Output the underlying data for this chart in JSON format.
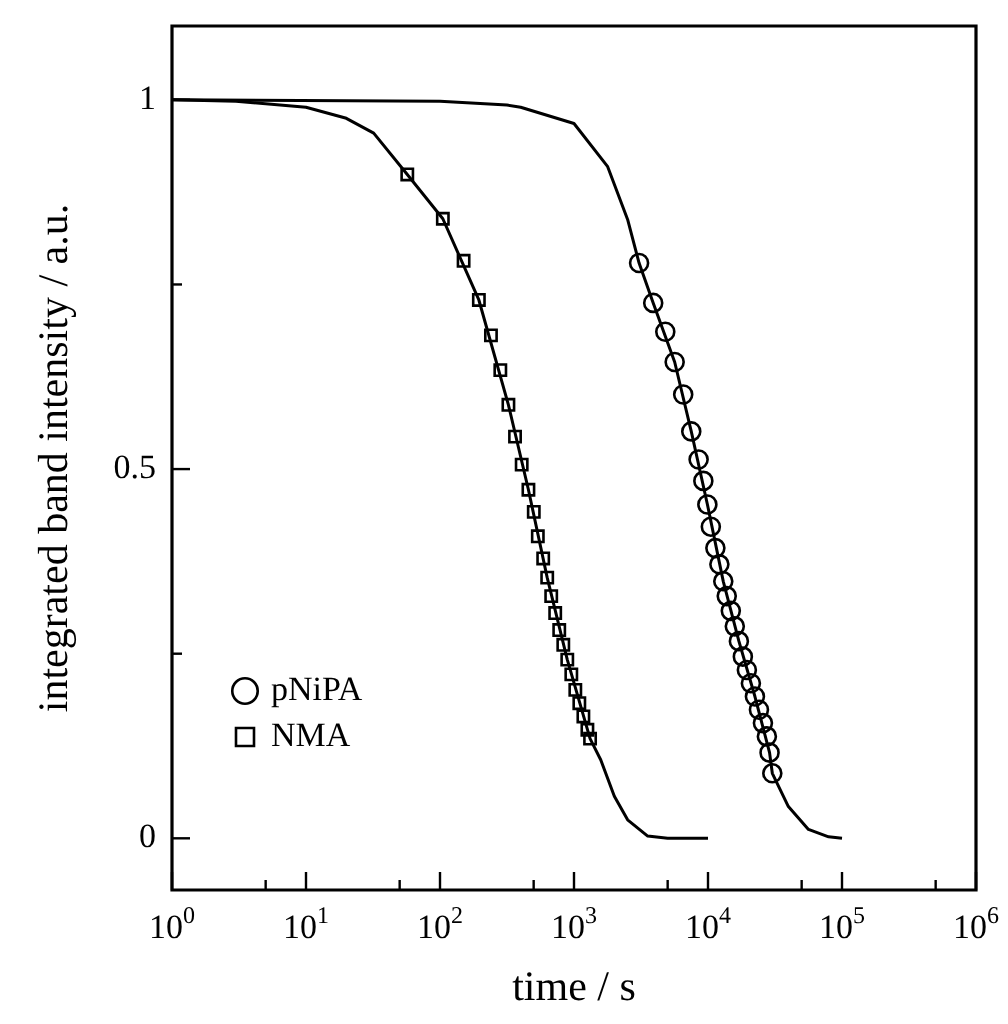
{
  "chart_data": {
    "type": "scatter",
    "xlabel": "time / s",
    "ylabel": "integrated band intensity / a.u.",
    "log": "x",
    "grid": false,
    "legend": "bottom left",
    "xlim": [
      1,
      1000000
    ],
    "ylim": [
      -0.07,
      1.1
    ],
    "xticks": [
      {
        "value": 1,
        "label": "10$^{0}$"
      },
      {
        "value": 5,
        "label": null
      },
      {
        "value": 10,
        "label": "10$^{1}$"
      },
      {
        "value": 50,
        "label": null
      },
      {
        "value": 100,
        "label": "10$^{2}$"
      },
      {
        "value": 500,
        "label": null
      },
      {
        "value": 1000,
        "label": "10$^{3}$"
      },
      {
        "value": 5000,
        "label": null
      },
      {
        "value": 10000,
        "label": "10$^{4}$"
      },
      {
        "value": 50000,
        "label": null
      },
      {
        "value": 100000,
        "label": "10$^{5}$"
      },
      {
        "value": 500000,
        "label": null
      },
      {
        "value": 1000000,
        "label": "10$^{6}$"
      }
    ],
    "yticks": [
      0,
      {
        "value": 0.25,
        "label": null
      },
      0.5,
      {
        "value": 0.75,
        "label": null
      },
      1
    ],
    "series": [
      {
        "type": "line",
        "color": "#000000",
        "marker": "none",
        "x": [
          1,
          3,
          10,
          20,
          32,
          57,
          105,
          195,
          324,
          457,
          631,
          891,
          1318,
          1585,
          2000,
          2512,
          3548,
          5000,
          10000
        ],
        "values": [
          1,
          0.998,
          0.99,
          0.975,
          0.955,
          0.899,
          0.839,
          0.729,
          0.587,
          0.472,
          0.353,
          0.242,
          0.135,
          0.106,
          0.057,
          0.025,
          0.003,
          0,
          0
        ]
      },
      {
        "type": "line",
        "color": "#000000",
        "marker": "none",
        "x": [
          1,
          100,
          316,
          400,
          1000,
          1778,
          2512,
          3060,
          3900,
          5640,
          7500,
          9900,
          13000,
          17000,
          22400,
          28800,
          30200,
          39800,
          56200,
          79400,
          100000
        ],
        "values": [
          1,
          0.998,
          0.993,
          0.99,
          0.968,
          0.91,
          0.838,
          0.779,
          0.725,
          0.645,
          0.551,
          0.452,
          0.348,
          0.267,
          0.192,
          0.116,
          0.088,
          0.043,
          0.012,
          0.002,
          0
        ]
      },
      {
        "name": "pNiPA",
        "color": "#000000",
        "marker": "circle",
        "x": [
          3060,
          3900,
          4800,
          5640,
          6530,
          7500,
          8510,
          9230,
          9890,
          10500,
          11350,
          12160,
          13000,
          13800,
          14800,
          15850,
          17000,
          18200,
          19500,
          20900,
          22400,
          24000,
          25700,
          27500,
          28800,
          30200
        ],
        "values": [
          0.779,
          0.725,
          0.686,
          0.645,
          0.601,
          0.551,
          0.513,
          0.484,
          0.452,
          0.422,
          0.393,
          0.371,
          0.348,
          0.328,
          0.308,
          0.287,
          0.267,
          0.246,
          0.228,
          0.21,
          0.192,
          0.174,
          0.156,
          0.138,
          0.116,
          0.088
        ]
      },
      {
        "name": "NMA",
        "color": "#000000",
        "marker": "square",
        "x": [
          57,
          105,
          150,
          195,
          240,
          282,
          324,
          363,
          407,
          457,
          501,
          537,
          589,
          631,
          676,
          724,
          776,
          832,
          891,
          955,
          1023,
          1096,
          1175,
          1259,
          1318
        ],
        "values": [
          0.899,
          0.839,
          0.782,
          0.729,
          0.681,
          0.634,
          0.587,
          0.544,
          0.506,
          0.472,
          0.442,
          0.409,
          0.379,
          0.353,
          0.328,
          0.305,
          0.282,
          0.262,
          0.242,
          0.222,
          0.201,
          0.183,
          0.165,
          0.147,
          0.135
        ]
      }
    ]
  }
}
